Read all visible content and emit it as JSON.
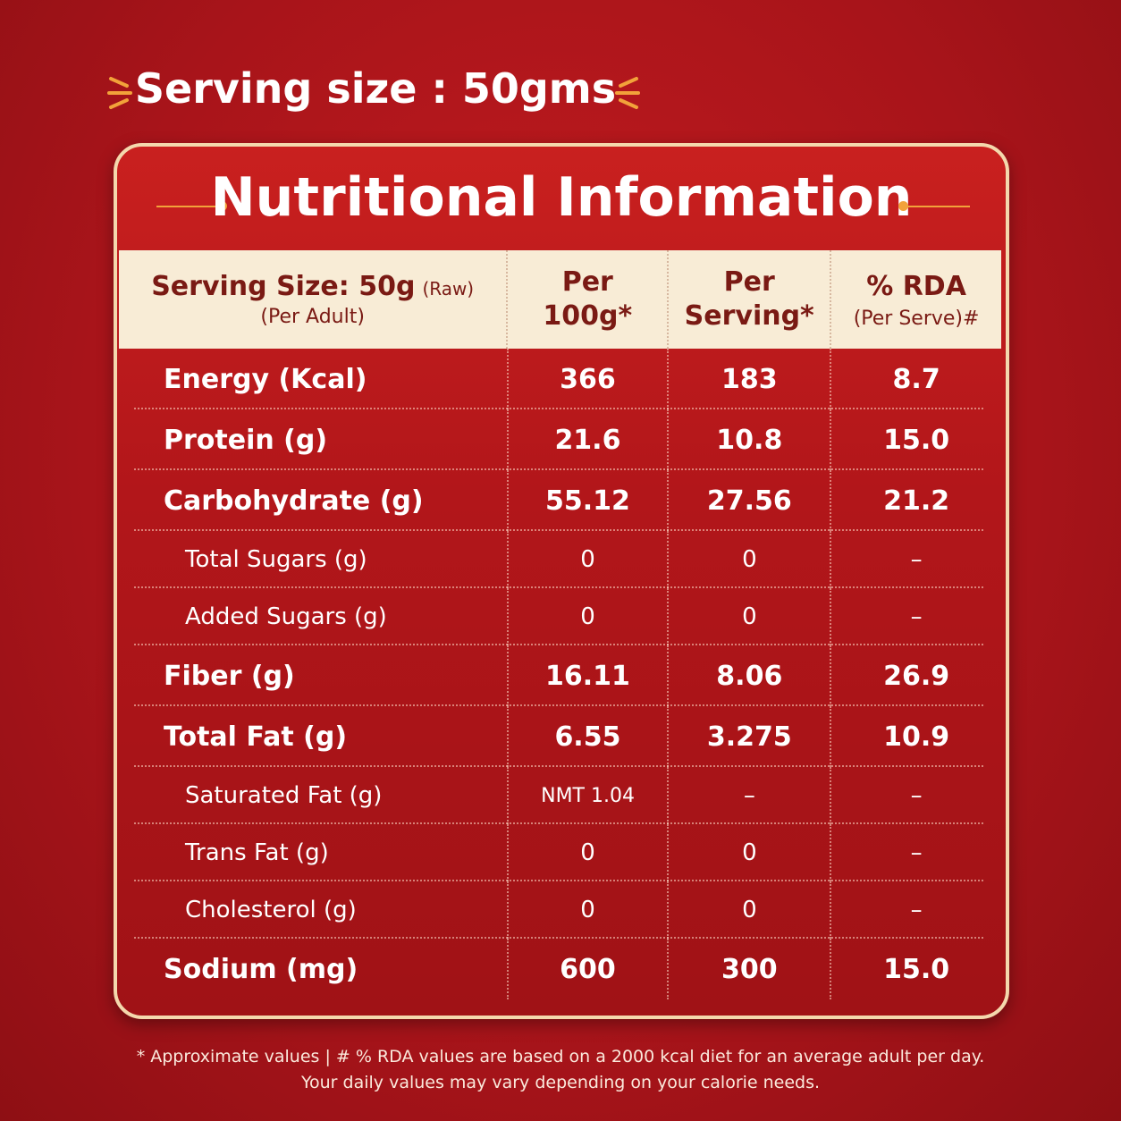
{
  "header": {
    "title": "Serving size : 50gms"
  },
  "panel": {
    "title": "Nutritional Information"
  },
  "table": {
    "header": {
      "first": {
        "label": "Serving Size: 50g",
        "note": "(Raw)",
        "sub": "(Per Adult)"
      },
      "columns": [
        [
          "Per",
          "100g*"
        ],
        [
          "Per",
          "Serving*"
        ],
        [
          "% RDA",
          "(Per Serve)#"
        ]
      ]
    },
    "rows": [
      {
        "style": "main",
        "cells": [
          "Energy (Kcal)",
          "366",
          "183",
          "8.7"
        ]
      },
      {
        "style": "main",
        "cells": [
          "Protein (g)",
          "21.6",
          "10.8",
          "15.0"
        ]
      },
      {
        "style": "main",
        "cells": [
          "Carbohydrate (g)",
          "55.12",
          "27.56",
          "21.2"
        ]
      },
      {
        "style": "sub",
        "cells": [
          "Total Sugars (g)",
          "0",
          "0",
          "–"
        ]
      },
      {
        "style": "sub",
        "cells": [
          "Added Sugars (g)",
          "0",
          "0",
          "–"
        ]
      },
      {
        "style": "main",
        "cells": [
          "Fiber (g)",
          "16.11",
          "8.06",
          "26.9"
        ]
      },
      {
        "style": "main",
        "cells": [
          "Total Fat (g)",
          "6.55",
          "3.275",
          "10.9"
        ]
      },
      {
        "style": "sub",
        "cells": [
          "Saturated Fat (g)",
          "NMT 1.04",
          "–",
          "–"
        ]
      },
      {
        "style": "sub",
        "cells": [
          "Trans Fat (g)",
          "0",
          "0",
          "–"
        ]
      },
      {
        "style": "sub",
        "cells": [
          "Cholesterol (g)",
          "0",
          "0",
          "–"
        ]
      },
      {
        "style": "main",
        "cells": [
          "Sodium (mg)",
          "600",
          "300",
          "15.0"
        ]
      }
    ]
  },
  "footnote": [
    "*  Approximate values   |   # % RDA values are based on a 2000 kcal diet for an average adult per day.",
    "Your daily values may vary depending on your calorie needs."
  ]
}
